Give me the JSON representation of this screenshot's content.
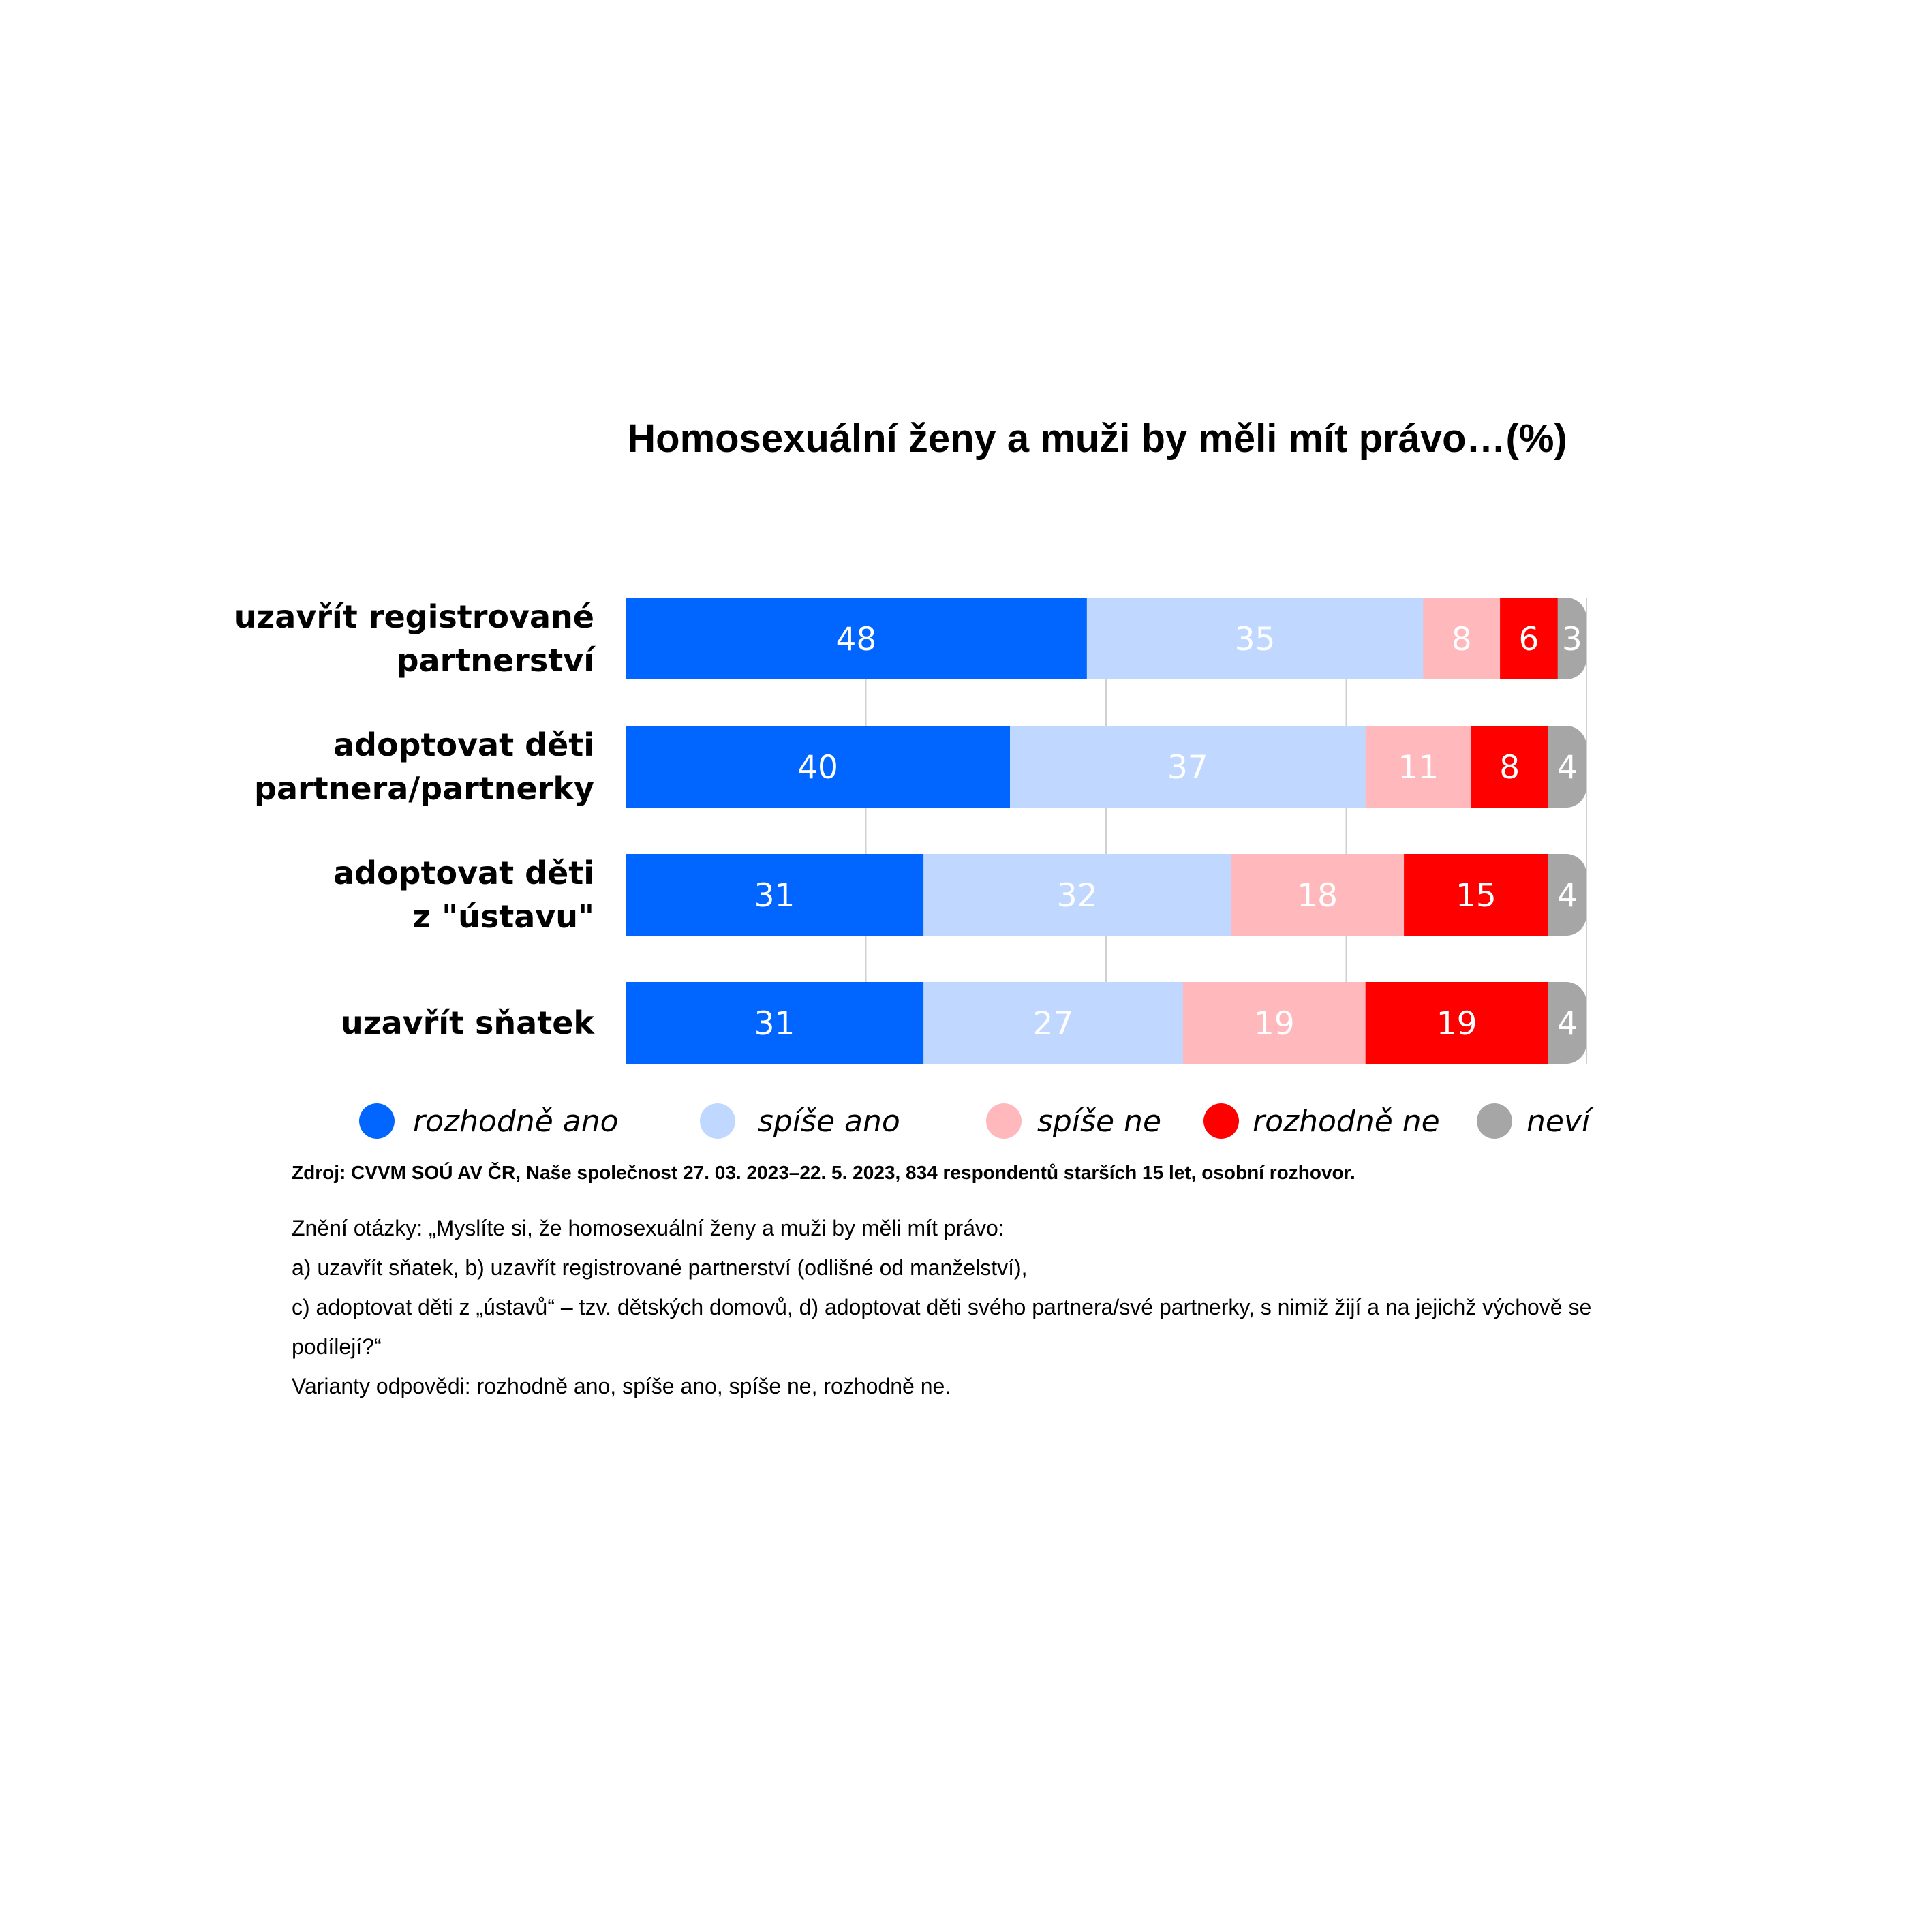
{
  "chart_data": {
    "type": "bar",
    "orientation": "horizontal",
    "stacked": true,
    "title": "Homosexuální ženy a muži by měli mít právo…(%)",
    "categories": [
      [
        "uzavřít registrované",
        "partnerství"
      ],
      [
        "adoptovat děti",
        "partnera/partnerky"
      ],
      [
        "adoptovat děti",
        "z \"ústavu\""
      ],
      [
        "uzavřít sňatek"
      ]
    ],
    "series": [
      {
        "name": "rozhodně ano",
        "color": "#0066ff",
        "values": [
          48,
          40,
          31,
          31
        ]
      },
      {
        "name": "spíše ano",
        "color": "#c0d8ff",
        "values": [
          35,
          37,
          32,
          27
        ]
      },
      {
        "name": "spíše ne",
        "color": "#ffb9bc",
        "values": [
          8,
          11,
          18,
          19
        ]
      },
      {
        "name": "rozhodně ne",
        "color": "#ff0000",
        "values": [
          6,
          8,
          15,
          19
        ]
      },
      {
        "name": "neví",
        "color": "#a6a6a6",
        "values": [
          3,
          4,
          4,
          4
        ]
      }
    ],
    "xlim": [
      0,
      100
    ],
    "grid": true,
    "legend_position": "bottom"
  },
  "notes": {
    "source": "Zdroj: CVVM SOÚ AV ČR, Naše společnost 27. 03. 2023–22. 5. 2023, 834 respondentů starších 15 let, osobní rozhovor.",
    "question_lines": [
      "Znění otázky: „Myslíte si, že homosexuální ženy a muži by měli mít právo:",
      "a) uzavřít sňatek, b) uzavřít registrované partnerství (odlišné od manželství),",
      "c) adoptovat děti z „ústavů“ – tzv. dětských domovů, d) adoptovat děti svého partnera/své partnerky, s nimiž žijí a na jejichž výchově se",
      "podílejí?“",
      "Varianty odpovědi: rozhodně ano, spíše ano, spíše ne, rozhodně ne."
    ]
  }
}
